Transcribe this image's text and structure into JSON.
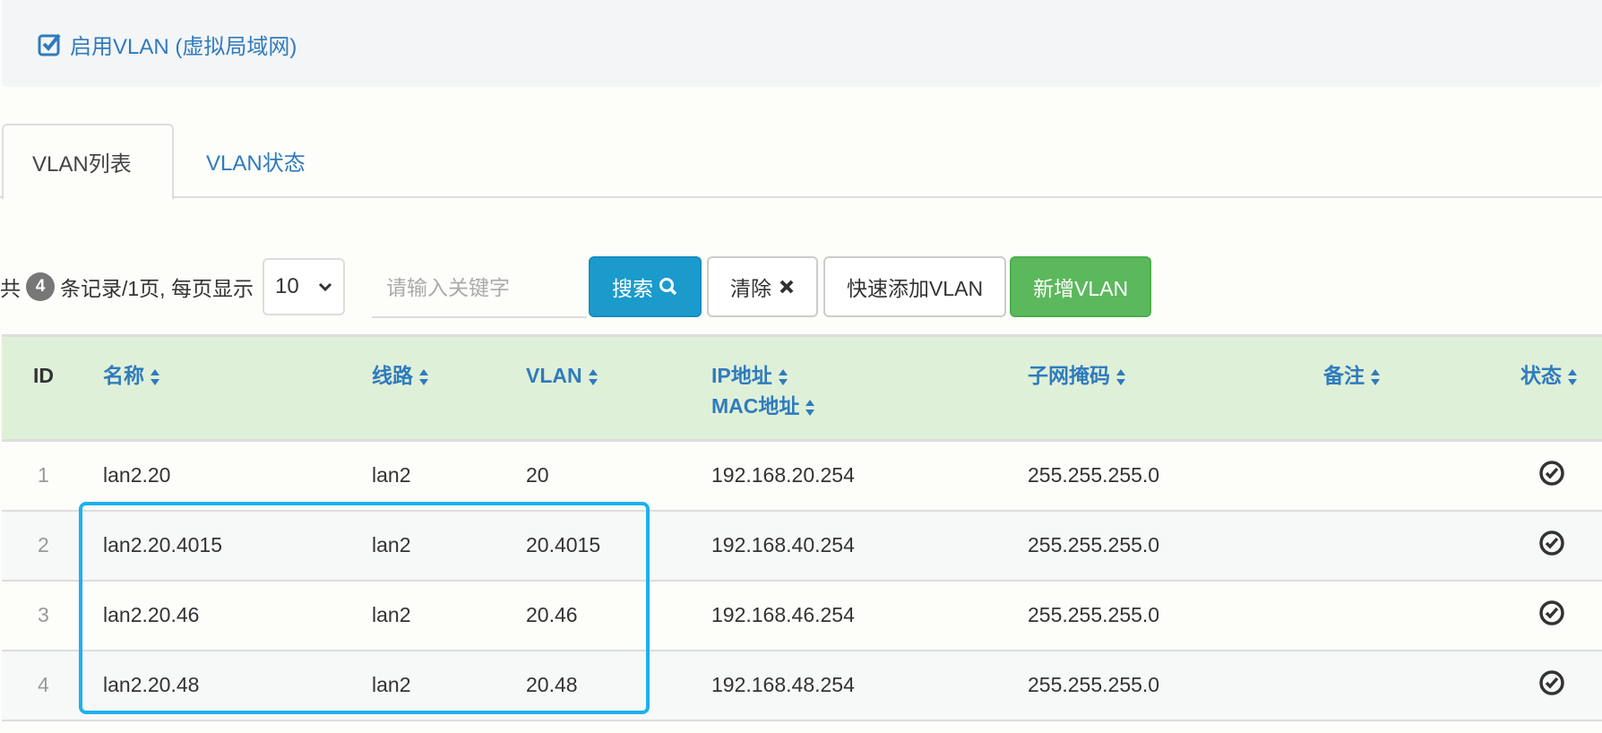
{
  "enable_vlan": {
    "label": "启用VLAN (虚拟局域网)",
    "checked": true
  },
  "tabs": [
    {
      "label": "VLAN列表",
      "active": true
    },
    {
      "label": "VLAN状态",
      "active": false
    }
  ],
  "toolbar": {
    "prefix": "共",
    "count": "4",
    "suffix": "条记录/1页, 每页显示",
    "page_size": "10",
    "search_placeholder": "请输入关键字",
    "search_label": "搜索",
    "clear_label": "清除",
    "quick_add_label": "快速添加VLAN",
    "add_label": "新增VLAN"
  },
  "table": {
    "headers": {
      "id": "ID",
      "name": "名称",
      "line": "线路",
      "vlan": "VLAN",
      "ip": "IP地址",
      "mac": "MAC地址",
      "mask": "子网掩码",
      "note": "备注",
      "status": "状态"
    },
    "rows": [
      {
        "id": "1",
        "name": "lan2.20",
        "line": "lan2",
        "vlan": "20",
        "ip": "192.168.20.254",
        "mask": "255.255.255.0",
        "note": "",
        "status": "enabled"
      },
      {
        "id": "2",
        "name": "lan2.20.4015",
        "line": "lan2",
        "vlan": "20.4015",
        "ip": "192.168.40.254",
        "mask": "255.255.255.0",
        "note": "",
        "status": "enabled"
      },
      {
        "id": "3",
        "name": "lan2.20.46",
        "line": "lan2",
        "vlan": "20.46",
        "ip": "192.168.46.254",
        "mask": "255.255.255.0",
        "note": "",
        "status": "enabled"
      },
      {
        "id": "4",
        "name": "lan2.20.48",
        "line": "lan2",
        "vlan": "20.48",
        "ip": "192.168.48.254",
        "mask": "255.255.255.0",
        "note": "",
        "status": "enabled"
      }
    ]
  },
  "colors": {
    "link": "#2f7bbd",
    "primary": "#1a9bcc",
    "success": "#5cb85c",
    "header_bg": "#dff0d8",
    "highlight": "#1eb0f0"
  }
}
